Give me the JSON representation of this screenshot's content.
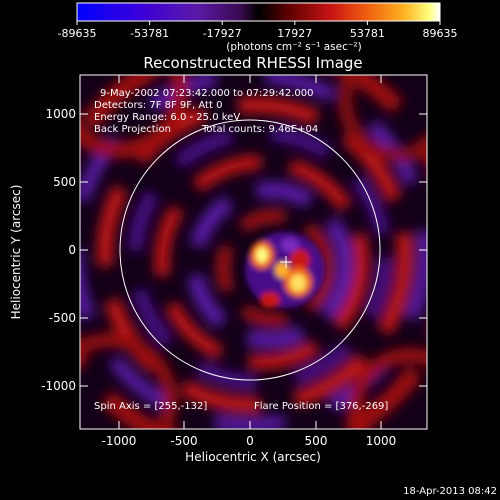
{
  "colorbar": {
    "ticks": [
      "-89635",
      "-53781",
      "-17927",
      "17927",
      "53781",
      "89635"
    ],
    "units_html": "(photons cm⁻² s⁻¹ asec⁻²)"
  },
  "title": "Reconstructed RHESSI Image",
  "info": {
    "line1": "9-May-2002 07:23:42.000 to 07:29:42.000",
    "line2": "Detectors: 7F 8F 9F, Att 0",
    "line3": "Energy Range: 6.0 - 25.0 keV",
    "line4a": "Back Projection",
    "line4b": "Total counts: 9.46E+04"
  },
  "footer_left": "Spin Axis = [255,-132]",
  "footer_right": "Flare Position = [376,-269]",
  "timestamp": "18-Apr-2013 08:42",
  "chart_data": {
    "type": "heatmap",
    "title": "Reconstructed RHESSI Image",
    "xlabel": "Heliocentric X (arcsec)",
    "ylabel": "Heliocentric Y (arcsec)",
    "xlim": [
      -1300,
      1300
    ],
    "ylim": [
      -1300,
      1300
    ],
    "xticks": [
      -1000,
      -500,
      0,
      500,
      1000
    ],
    "yticks": [
      1000,
      500,
      0,
      -500,
      -1000
    ],
    "colorbar_range": [
      -89635,
      89635
    ],
    "solar_limb_radius": 960,
    "spin_axis": [
      255,
      -132
    ],
    "flare_position": [
      376,
      -269
    ],
    "colors": [
      "#0000ff",
      "#3c00d8",
      "#5a1aa8",
      "#3a0a50",
      "#000000",
      "#5a0000",
      "#c81414",
      "#f06010",
      "#ffb020",
      "#ffff80",
      "#ffffff"
    ]
  }
}
